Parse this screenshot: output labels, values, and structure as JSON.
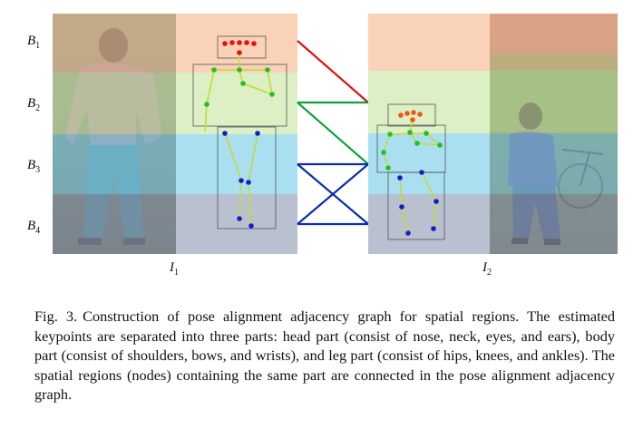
{
  "region_labels": [
    {
      "base": "B",
      "sub": "1"
    },
    {
      "base": "B",
      "sub": "2"
    },
    {
      "base": "B",
      "sub": "3"
    },
    {
      "base": "B",
      "sub": "4"
    }
  ],
  "image_labels": [
    {
      "base": "I",
      "sub": "1"
    },
    {
      "base": "I",
      "sub": "2"
    }
  ],
  "colors": {
    "head_region": "#f9d2b7",
    "body_region": "#dcefc5",
    "leg_region": "#a9dff0",
    "bottom_region": "#b9c0cf",
    "red_line": "#e01010",
    "green_line": "#10a040",
    "blue_line": "#0a2ea8"
  },
  "caption": {
    "label": "Fig. 3.",
    "text": "Construction of pose alignment adjacency graph for spatial regions. The estimated keypoints are separated into three parts: head part (consist of nose, neck, eyes, and ears), body part (consist of shoulders, bows, and wrists), and leg part (consist of hips, knees, and ankles). The spatial regions (nodes) containing the same part are connected in the pose alignment adjacency graph."
  }
}
